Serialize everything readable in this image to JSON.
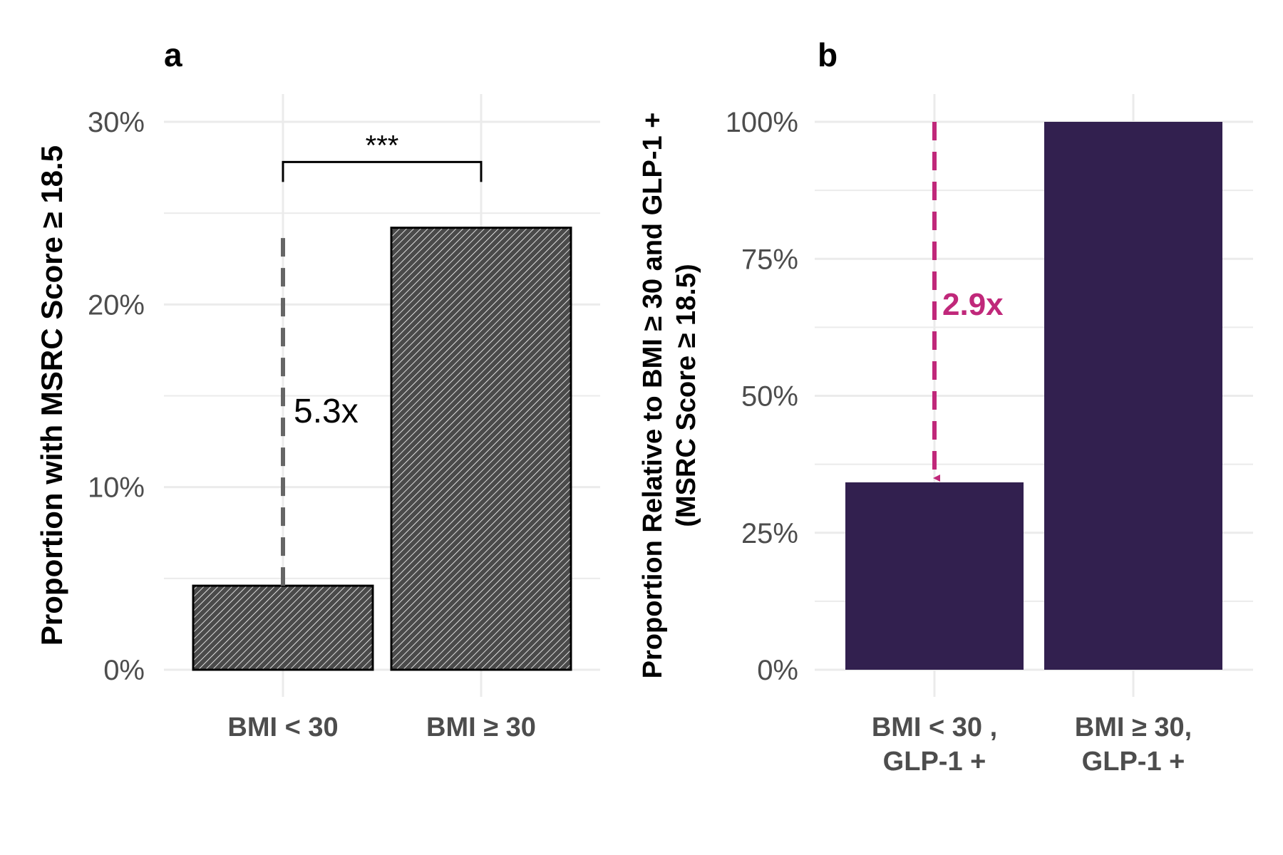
{
  "chart_data": [
    {
      "panel": "a",
      "type": "bar",
      "ylabel": "Proportion with MSRC Score ≥ 18.5",
      "xlabel": "",
      "categories": [
        "BMI < 30",
        "BMI ≥ 30"
      ],
      "values": [
        4.6,
        24.2
      ],
      "unit": "%",
      "ylim": [
        0,
        30
      ],
      "yticks": [
        0,
        10,
        20,
        30
      ],
      "ytick_labels": [
        "0%",
        "10%",
        "20%",
        "30%"
      ],
      "grid": true,
      "bar_style": "hatched",
      "annotations": {
        "significance": "***",
        "ratio": "5.3x"
      }
    },
    {
      "panel": "b",
      "type": "bar",
      "ylabel": "Proportion Relative to BMI ≥ 30 and GLP-1 +",
      "ylabel2": "(MSRC Score ≥ 18.5)",
      "xlabel": "",
      "categories": [
        [
          "BMI < 30 ,",
          "GLP-1 +"
        ],
        [
          "BMI ≥ 30,",
          "GLP-1 +"
        ]
      ],
      "values": [
        34.2,
        100
      ],
      "unit": "%",
      "ylim": [
        0,
        100
      ],
      "yticks": [
        0,
        25,
        50,
        75,
        100
      ],
      "ytick_labels": [
        "0%",
        "25%",
        "50%",
        "75%",
        "100%"
      ],
      "grid": true,
      "bar_color": "#32204f",
      "annotations": {
        "ratio": "2.9x",
        "ratio_color": "#c0287a"
      }
    }
  ]
}
